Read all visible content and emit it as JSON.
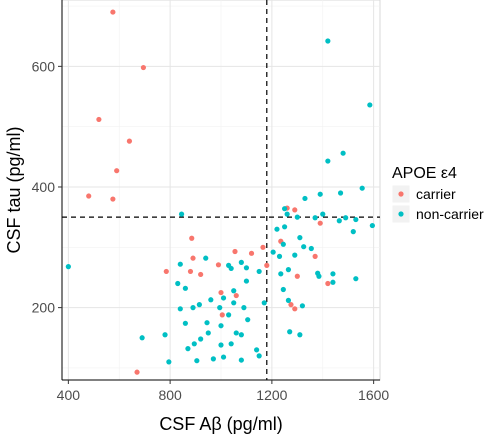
{
  "chart_data": {
    "type": "scatter",
    "title": "",
    "xlabel": "CSF Aβ (pg/ml)",
    "ylabel": "CSF tau (pg/ml)",
    "xlim": [
      375,
      1625
    ],
    "ylim": [
      80,
      710
    ],
    "x_ticks": [
      400,
      800,
      1200,
      1600
    ],
    "y_ticks": [
      200,
      400,
      600
    ],
    "x_tick_labels": [
      "400",
      "800",
      "1200",
      "1600"
    ],
    "y_tick_labels": [
      "200",
      "400",
      "600"
    ],
    "grid": true,
    "legend": {
      "title": "APOE ε4",
      "placement": "right"
    },
    "reference_lines": {
      "x": 1180,
      "y": 350
    },
    "series": [
      {
        "name": "carrier",
        "color": "#F8766D",
        "points": [
          [
            575,
            690
          ],
          [
            695,
            598
          ],
          [
            520,
            512
          ],
          [
            640,
            476
          ],
          [
            590,
            427
          ],
          [
            480,
            385
          ],
          [
            575,
            380
          ],
          [
            1260,
            365
          ],
          [
            1290,
            362
          ],
          [
            1390,
            340
          ],
          [
            885,
            315
          ],
          [
            1235,
            310
          ],
          [
            1165,
            300
          ],
          [
            1055,
            293
          ],
          [
            1120,
            290
          ],
          [
            1370,
            285
          ],
          [
            890,
            282
          ],
          [
            990,
            271
          ],
          [
            1180,
            270
          ],
          [
            785,
            260
          ],
          [
            880,
            260
          ],
          [
            920,
            255
          ],
          [
            1300,
            252
          ],
          [
            1420,
            240
          ],
          [
            1000,
            225
          ],
          [
            1060,
            220
          ],
          [
            1275,
            205
          ],
          [
            1290,
            198
          ],
          [
            1005,
            188
          ],
          [
            670,
            93
          ]
        ]
      },
      {
        "name": "non-carrier",
        "color": "#00BFC4",
        "points": [
          [
            1420,
            642
          ],
          [
            1585,
            536
          ],
          [
            1480,
            456
          ],
          [
            1420,
            443
          ],
          [
            1555,
            398
          ],
          [
            1470,
            390
          ],
          [
            1390,
            388
          ],
          [
            1330,
            381
          ],
          [
            1250,
            364
          ],
          [
            1260,
            355
          ],
          [
            1400,
            355
          ],
          [
            845,
            355
          ],
          [
            1300,
            350
          ],
          [
            1370,
            349
          ],
          [
            1490,
            349
          ],
          [
            1530,
            346
          ],
          [
            1465,
            344
          ],
          [
            1595,
            336
          ],
          [
            1250,
            334
          ],
          [
            1220,
            330
          ],
          [
            1520,
            326
          ],
          [
            1310,
            316
          ],
          [
            1245,
            305
          ],
          [
            1325,
            301
          ],
          [
            1355,
            298
          ],
          [
            1205,
            292
          ],
          [
            1290,
            287
          ],
          [
            1230,
            285
          ],
          [
            940,
            282
          ],
          [
            1030,
            270
          ],
          [
            1080,
            275
          ],
          [
            1100,
            266
          ],
          [
            1040,
            265
          ],
          [
            1150,
            260
          ],
          [
            1265,
            263
          ],
          [
            1380,
            257
          ],
          [
            1440,
            256
          ],
          [
            400,
            268
          ],
          [
            840,
            272
          ],
          [
            1235,
            256
          ],
          [
            1530,
            248
          ],
          [
            1440,
            242
          ],
          [
            1385,
            252
          ],
          [
            1100,
            244
          ],
          [
            830,
            240
          ],
          [
            860,
            232
          ],
          [
            1245,
            230
          ],
          [
            1050,
            228
          ],
          [
            1010,
            216
          ],
          [
            960,
            213
          ],
          [
            915,
            205
          ],
          [
            1265,
            212
          ],
          [
            1170,
            208
          ],
          [
            1050,
            208
          ],
          [
            1320,
            203
          ],
          [
            840,
            198
          ],
          [
            890,
            200
          ],
          [
            995,
            200
          ],
          [
            1090,
            200
          ],
          [
            1030,
            188
          ],
          [
            1105,
            180
          ],
          [
            945,
            175
          ],
          [
            860,
            174
          ],
          [
            1000,
            170
          ],
          [
            950,
            158
          ],
          [
            1060,
            158
          ],
          [
            1080,
            155
          ],
          [
            1270,
            160
          ],
          [
            1310,
            155
          ],
          [
            780,
            155
          ],
          [
            690,
            150
          ],
          [
            920,
            148
          ],
          [
            895,
            140
          ],
          [
            1000,
            138
          ],
          [
            1040,
            140
          ],
          [
            870,
            132
          ],
          [
            1140,
            130
          ],
          [
            1150,
            120
          ],
          [
            1010,
            118
          ],
          [
            970,
            115
          ],
          [
            795,
            110
          ],
          [
            905,
            112
          ],
          [
            1080,
            113
          ]
        ]
      }
    ]
  }
}
